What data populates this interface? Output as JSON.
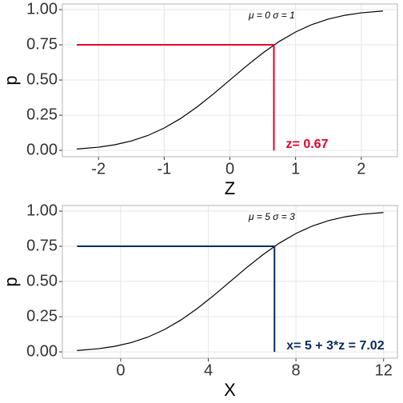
{
  "chart_data": [
    {
      "type": "line",
      "xlabel": "Z",
      "ylabel": "p",
      "x": [
        -2.33,
        -2,
        -1.75,
        -1.5,
        -1.25,
        -1,
        -0.75,
        -0.5,
        -0.25,
        0,
        0.25,
        0.5,
        0.75,
        1,
        1.25,
        1.5,
        1.75,
        2,
        2.33
      ],
      "values": [
        0.0099,
        0.0228,
        0.0401,
        0.0668,
        0.1056,
        0.1587,
        0.2266,
        0.3085,
        0.4013,
        0.5,
        0.5987,
        0.6915,
        0.7734,
        0.8413,
        0.8944,
        0.9332,
        0.9599,
        0.9772,
        0.9901
      ],
      "color": "#000000",
      "xlim": [
        -2.55,
        2.55
      ],
      "xticks": [
        -2,
        -1,
        0,
        1,
        2
      ],
      "ylim": [
        -0.045,
        1.04
      ],
      "yticks": [
        {
          "value": 0,
          "label": "0.00"
        },
        0.25,
        {
          "value": 0.5,
          "label": "0.50"
        },
        0.75,
        {
          "value": 1,
          "label": "1.00"
        }
      ],
      "grid": true,
      "params_label": "μ = 0  σ = 1",
      "quantile": {
        "x": 0.67,
        "p": 0.75,
        "color": "#e3002b",
        "label": "z= 0.67"
      }
    },
    {
      "type": "line",
      "xlabel": "X",
      "ylabel": "p",
      "x": [
        -1.99,
        -1,
        -0.25,
        0.5,
        1.25,
        2,
        2.75,
        3.5,
        4.25,
        5,
        5.75,
        6.5,
        7.25,
        8,
        8.75,
        9.5,
        10.25,
        11,
        11.99
      ],
      "values": [
        0.0099,
        0.0228,
        0.0401,
        0.0668,
        0.1056,
        0.1587,
        0.2266,
        0.3085,
        0.4013,
        0.5,
        0.5987,
        0.6915,
        0.7734,
        0.8413,
        0.8944,
        0.9332,
        0.9599,
        0.9772,
        0.9901
      ],
      "color": "#000000",
      "xlim": [
        -2.66,
        12.63
      ],
      "xticks": [
        0,
        4,
        8,
        12
      ],
      "ylim": [
        -0.045,
        1.04
      ],
      "yticks": [
        {
          "value": 0,
          "label": "0.00"
        },
        0.25,
        {
          "value": 0.5,
          "label": "0.50"
        },
        0.75,
        {
          "value": 1,
          "label": "1.00"
        }
      ],
      "grid": true,
      "params_label": "μ = 5  σ = 3",
      "quantile": {
        "x": 7.02,
        "p": 0.75,
        "color": "#0a2a5c",
        "label": "x= 5 + 3*z = 7.02"
      }
    }
  ]
}
